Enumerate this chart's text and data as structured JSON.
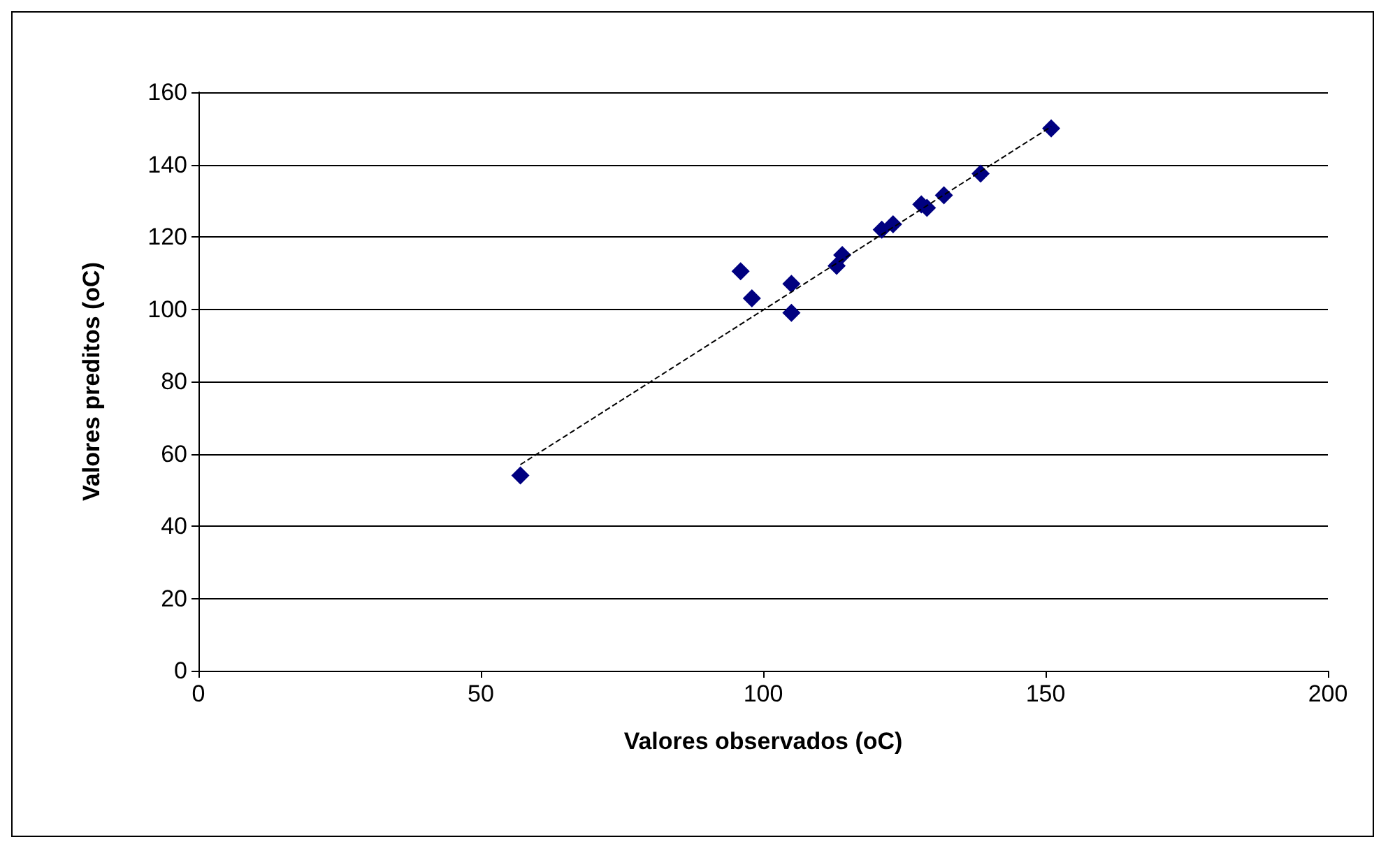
{
  "chart_data": {
    "type": "scatter",
    "xlabel": "Valores observados (oC)",
    "ylabel": "Valores preditos (oC)",
    "xlim": [
      0,
      200
    ],
    "xticks": [
      0,
      50,
      100,
      150,
      200
    ],
    "ylim": [
      0,
      160
    ],
    "yticks": [
      0,
      20,
      40,
      60,
      80,
      100,
      120,
      140,
      160
    ],
    "grid": "y",
    "marker": "diamond",
    "series": [
      {
        "color": "#000080",
        "x": [
          57,
          96,
          98,
          105,
          105,
          113,
          114,
          121,
          123,
          128,
          129,
          132,
          138.5,
          151
        ],
        "values": [
          54,
          110.5,
          103,
          107,
          99,
          112,
          115,
          122,
          123.5,
          129,
          128,
          131.5,
          137.5,
          150
        ]
      },
      {
        "type": "line",
        "color": "#000000",
        "line_style": "dashed",
        "marker": "none",
        "x": [
          57,
          151
        ],
        "values": [
          57,
          150.5
        ]
      }
    ]
  }
}
